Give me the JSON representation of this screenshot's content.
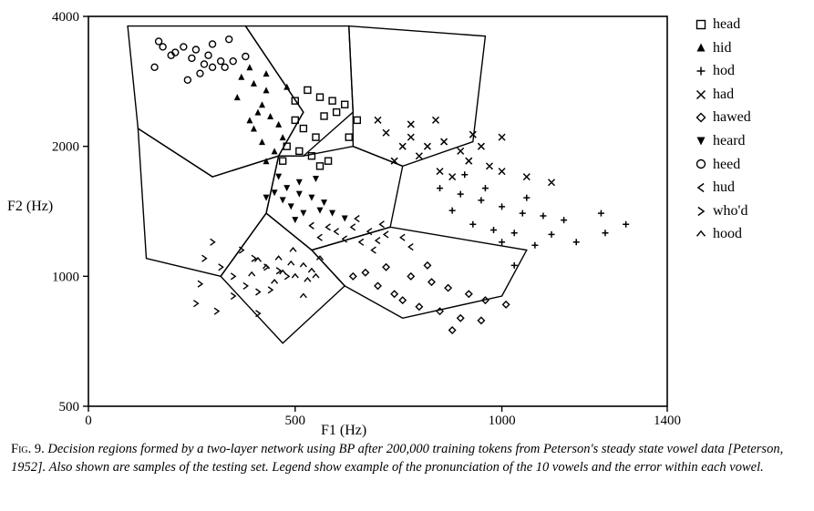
{
  "chart": {
    "type": "scatter",
    "background_color": "#ffffff",
    "stroke_color": "#000000",
    "xlabel": "F1  (Hz)",
    "ylabel": "F2  (Hz)",
    "label_fontsize": 16,
    "xlim": [
      0,
      1400
    ],
    "ylim": [
      500,
      4000
    ],
    "xtick_positions": [
      0,
      500,
      1000,
      1400
    ],
    "xtick_labels": [
      "0",
      "500",
      "1000",
      "1400"
    ],
    "ytick_positions": [
      500,
      1000,
      2000,
      4000
    ],
    "ytick_labels": [
      "500",
      "1000",
      "2000",
      "4000"
    ],
    "yscale": "log",
    "axis_linewidth": 1.6,
    "marker_size": 7,
    "legend_fontsize": 16,
    "regions": [
      [
        [
          95,
          3800
        ],
        [
          380,
          3800
        ],
        [
          520,
          2400
        ],
        [
          460,
          1900
        ],
        [
          300,
          1700
        ],
        [
          120,
          2200
        ],
        [
          95,
          3800
        ]
      ],
      [
        [
          380,
          3800
        ],
        [
          630,
          3800
        ],
        [
          640,
          2400
        ],
        [
          520,
          1900
        ],
        [
          460,
          1900
        ],
        [
          520,
          2400
        ],
        [
          380,
          3800
        ]
      ],
      [
        [
          630,
          3800
        ],
        [
          960,
          3600
        ],
        [
          930,
          2050
        ],
        [
          760,
          1800
        ],
        [
          640,
          2000
        ],
        [
          640,
          2400
        ],
        [
          630,
          3800
        ]
      ],
      [
        [
          460,
          1900
        ],
        [
          520,
          1900
        ],
        [
          640,
          2000
        ],
        [
          760,
          1800
        ],
        [
          730,
          1300
        ],
        [
          540,
          1150
        ],
        [
          430,
          1400
        ],
        [
          460,
          1900
        ]
      ],
      [
        [
          540,
          1150
        ],
        [
          730,
          1300
        ],
        [
          1060,
          1150
        ],
        [
          1000,
          900
        ],
        [
          760,
          800
        ],
        [
          620,
          950
        ],
        [
          540,
          1150
        ]
      ],
      [
        [
          120,
          2200
        ],
        [
          300,
          1700
        ],
        [
          460,
          1900
        ],
        [
          430,
          1400
        ],
        [
          320,
          1000
        ],
        [
          140,
          1100
        ],
        [
          120,
          2200
        ]
      ],
      [
        [
          430,
          1400
        ],
        [
          540,
          1150
        ],
        [
          620,
          950
        ],
        [
          470,
          700
        ],
        [
          320,
          1000
        ],
        [
          430,
          1400
        ]
      ]
    ],
    "series": [
      {
        "key": "head",
        "label": "head",
        "marker": "open-square",
        "color": "#000000",
        "points": [
          [
            530,
            2700
          ],
          [
            560,
            2600
          ],
          [
            590,
            2550
          ],
          [
            500,
            2300
          ],
          [
            520,
            2200
          ],
          [
            570,
            2350
          ],
          [
            600,
            2400
          ],
          [
            550,
            2100
          ],
          [
            480,
            2000
          ],
          [
            510,
            1950
          ],
          [
            540,
            1900
          ],
          [
            580,
            1850
          ],
          [
            620,
            2500
          ],
          [
            650,
            2300
          ],
          [
            560,
            1800
          ],
          [
            500,
            2550
          ],
          [
            630,
            2100
          ],
          [
            470,
            1850
          ]
        ]
      },
      {
        "key": "hid",
        "label": "hid",
        "marker": "filled-triangle-up",
        "color": "#000000",
        "points": [
          [
            370,
            2900
          ],
          [
            400,
            2800
          ],
          [
            430,
            2700
          ],
          [
            420,
            2500
          ],
          [
            410,
            2400
          ],
          [
            390,
            2300
          ],
          [
            400,
            2200
          ],
          [
            440,
            2350
          ],
          [
            460,
            2250
          ],
          [
            470,
            2100
          ],
          [
            420,
            2050
          ],
          [
            450,
            1950
          ],
          [
            480,
            2750
          ],
          [
            390,
            3050
          ],
          [
            360,
            2600
          ],
          [
            430,
            2950
          ],
          [
            430,
            1850
          ]
        ]
      },
      {
        "key": "hod",
        "label": "hod",
        "marker": "plus",
        "color": "#000000",
        "points": [
          [
            900,
            1550
          ],
          [
            950,
            1500
          ],
          [
            1000,
            1450
          ],
          [
            1050,
            1400
          ],
          [
            1100,
            1380
          ],
          [
            1150,
            1350
          ],
          [
            980,
            1280
          ],
          [
            1030,
            1260
          ],
          [
            1120,
            1250
          ],
          [
            850,
            1600
          ],
          [
            880,
            1420
          ],
          [
            930,
            1320
          ],
          [
            1000,
            1200
          ],
          [
            1080,
            1180
          ],
          [
            1180,
            1200
          ],
          [
            1250,
            1260
          ],
          [
            1060,
            1520
          ],
          [
            960,
            1600
          ],
          [
            910,
            1720
          ],
          [
            1240,
            1400
          ],
          [
            1300,
            1320
          ],
          [
            1030,
            1060
          ]
        ]
      },
      {
        "key": "had",
        "label": "had",
        "marker": "x",
        "color": "#000000",
        "points": [
          [
            780,
            2100
          ],
          [
            820,
            2000
          ],
          [
            860,
            2050
          ],
          [
            900,
            1950
          ],
          [
            950,
            2000
          ],
          [
            920,
            1850
          ],
          [
            970,
            1800
          ],
          [
            880,
            1700
          ],
          [
            850,
            1750
          ],
          [
            800,
            1900
          ],
          [
            760,
            2000
          ],
          [
            720,
            2150
          ],
          [
            740,
            1850
          ],
          [
            1000,
            1750
          ],
          [
            1060,
            1700
          ],
          [
            1120,
            1650
          ],
          [
            840,
            2300
          ],
          [
            780,
            2250
          ],
          [
            930,
            2130
          ],
          [
            700,
            2300
          ],
          [
            1000,
            2100
          ]
        ]
      },
      {
        "key": "hawed",
        "label": "hawed",
        "marker": "open-diamond",
        "color": "#000000",
        "points": [
          [
            720,
            1050
          ],
          [
            780,
            1000
          ],
          [
            830,
            970
          ],
          [
            870,
            940
          ],
          [
            920,
            910
          ],
          [
            960,
            880
          ],
          [
            760,
            880
          ],
          [
            800,
            850
          ],
          [
            850,
            830
          ],
          [
            900,
            800
          ],
          [
            950,
            790
          ],
          [
            700,
            950
          ],
          [
            740,
            910
          ],
          [
            670,
            1020
          ],
          [
            880,
            750
          ],
          [
            1010,
            860
          ],
          [
            640,
            1000
          ],
          [
            820,
            1060
          ]
        ]
      },
      {
        "key": "heard",
        "label": "heard",
        "marker": "filled-triangle-down",
        "color": "#000000",
        "points": [
          [
            480,
            1600
          ],
          [
            510,
            1550
          ],
          [
            540,
            1520
          ],
          [
            570,
            1480
          ],
          [
            560,
            1420
          ],
          [
            520,
            1400
          ],
          [
            490,
            1450
          ],
          [
            470,
            1500
          ],
          [
            450,
            1560
          ],
          [
            510,
            1650
          ],
          [
            550,
            1680
          ],
          [
            430,
            1520
          ],
          [
            590,
            1400
          ],
          [
            460,
            1700
          ],
          [
            500,
            1350
          ],
          [
            620,
            1360
          ]
        ]
      },
      {
        "key": "heed",
        "label": "heed",
        "marker": "open-circle",
        "color": "#000000",
        "points": [
          [
            180,
            3400
          ],
          [
            210,
            3300
          ],
          [
            250,
            3200
          ],
          [
            280,
            3100
          ],
          [
            300,
            3050
          ],
          [
            230,
            3400
          ],
          [
            260,
            3350
          ],
          [
            290,
            3250
          ],
          [
            320,
            3150
          ],
          [
            330,
            3050
          ],
          [
            270,
            2950
          ],
          [
            200,
            3250
          ],
          [
            300,
            3450
          ],
          [
            350,
            3150
          ],
          [
            170,
            3500
          ],
          [
            240,
            2850
          ],
          [
            340,
            3540
          ],
          [
            380,
            3230
          ],
          [
            160,
            3050
          ]
        ]
      },
      {
        "key": "hud",
        "label": "hud",
        "marker": "open-angle-left",
        "color": "#000000",
        "points": [
          [
            640,
            1300
          ],
          [
            680,
            1270
          ],
          [
            720,
            1250
          ],
          [
            760,
            1230
          ],
          [
            700,
            1210
          ],
          [
            660,
            1200
          ],
          [
            620,
            1220
          ],
          [
            600,
            1270
          ],
          [
            580,
            1300
          ],
          [
            650,
            1360
          ],
          [
            710,
            1320
          ],
          [
            560,
            1230
          ],
          [
            690,
            1150
          ],
          [
            780,
            1170
          ],
          [
            540,
            1310
          ]
        ]
      },
      {
        "key": "whod",
        "label": "who'd",
        "marker": "open-angle-right",
        "color": "#000000",
        "points": [
          [
            320,
            1050
          ],
          [
            350,
            1000
          ],
          [
            380,
            950
          ],
          [
            410,
            920
          ],
          [
            370,
            1150
          ],
          [
            400,
            1100
          ],
          [
            430,
            1050
          ],
          [
            460,
            1030
          ],
          [
            480,
            1000
          ],
          [
            300,
            1200
          ],
          [
            280,
            1100
          ],
          [
            350,
            900
          ],
          [
            270,
            960
          ],
          [
            310,
            830
          ],
          [
            440,
            930
          ],
          [
            410,
            820
          ],
          [
            260,
            865
          ]
        ]
      },
      {
        "key": "hood",
        "label": "hood",
        "marker": "caret-up",
        "color": "#000000",
        "points": [
          [
            460,
            1100
          ],
          [
            490,
            1070
          ],
          [
            520,
            1060
          ],
          [
            540,
            1030
          ],
          [
            470,
            1020
          ],
          [
            500,
            1000
          ],
          [
            530,
            980
          ],
          [
            550,
            1000
          ],
          [
            430,
            1050
          ],
          [
            450,
            970
          ],
          [
            560,
            1100
          ],
          [
            410,
            1090
          ],
          [
            495,
            1150
          ],
          [
            520,
            900
          ],
          [
            395,
            1010
          ]
        ]
      }
    ]
  },
  "caption": {
    "fig_label": "Fig. 9.",
    "text": "Decision regions formed by a two-layer network using BP after 200,000 training tokens from Peterson's steady state vowel data [Peterson, 1952]. Also shown are samples of the testing set. Legend show example of the pronunciation of the 10 vowels and the error within each vowel."
  }
}
